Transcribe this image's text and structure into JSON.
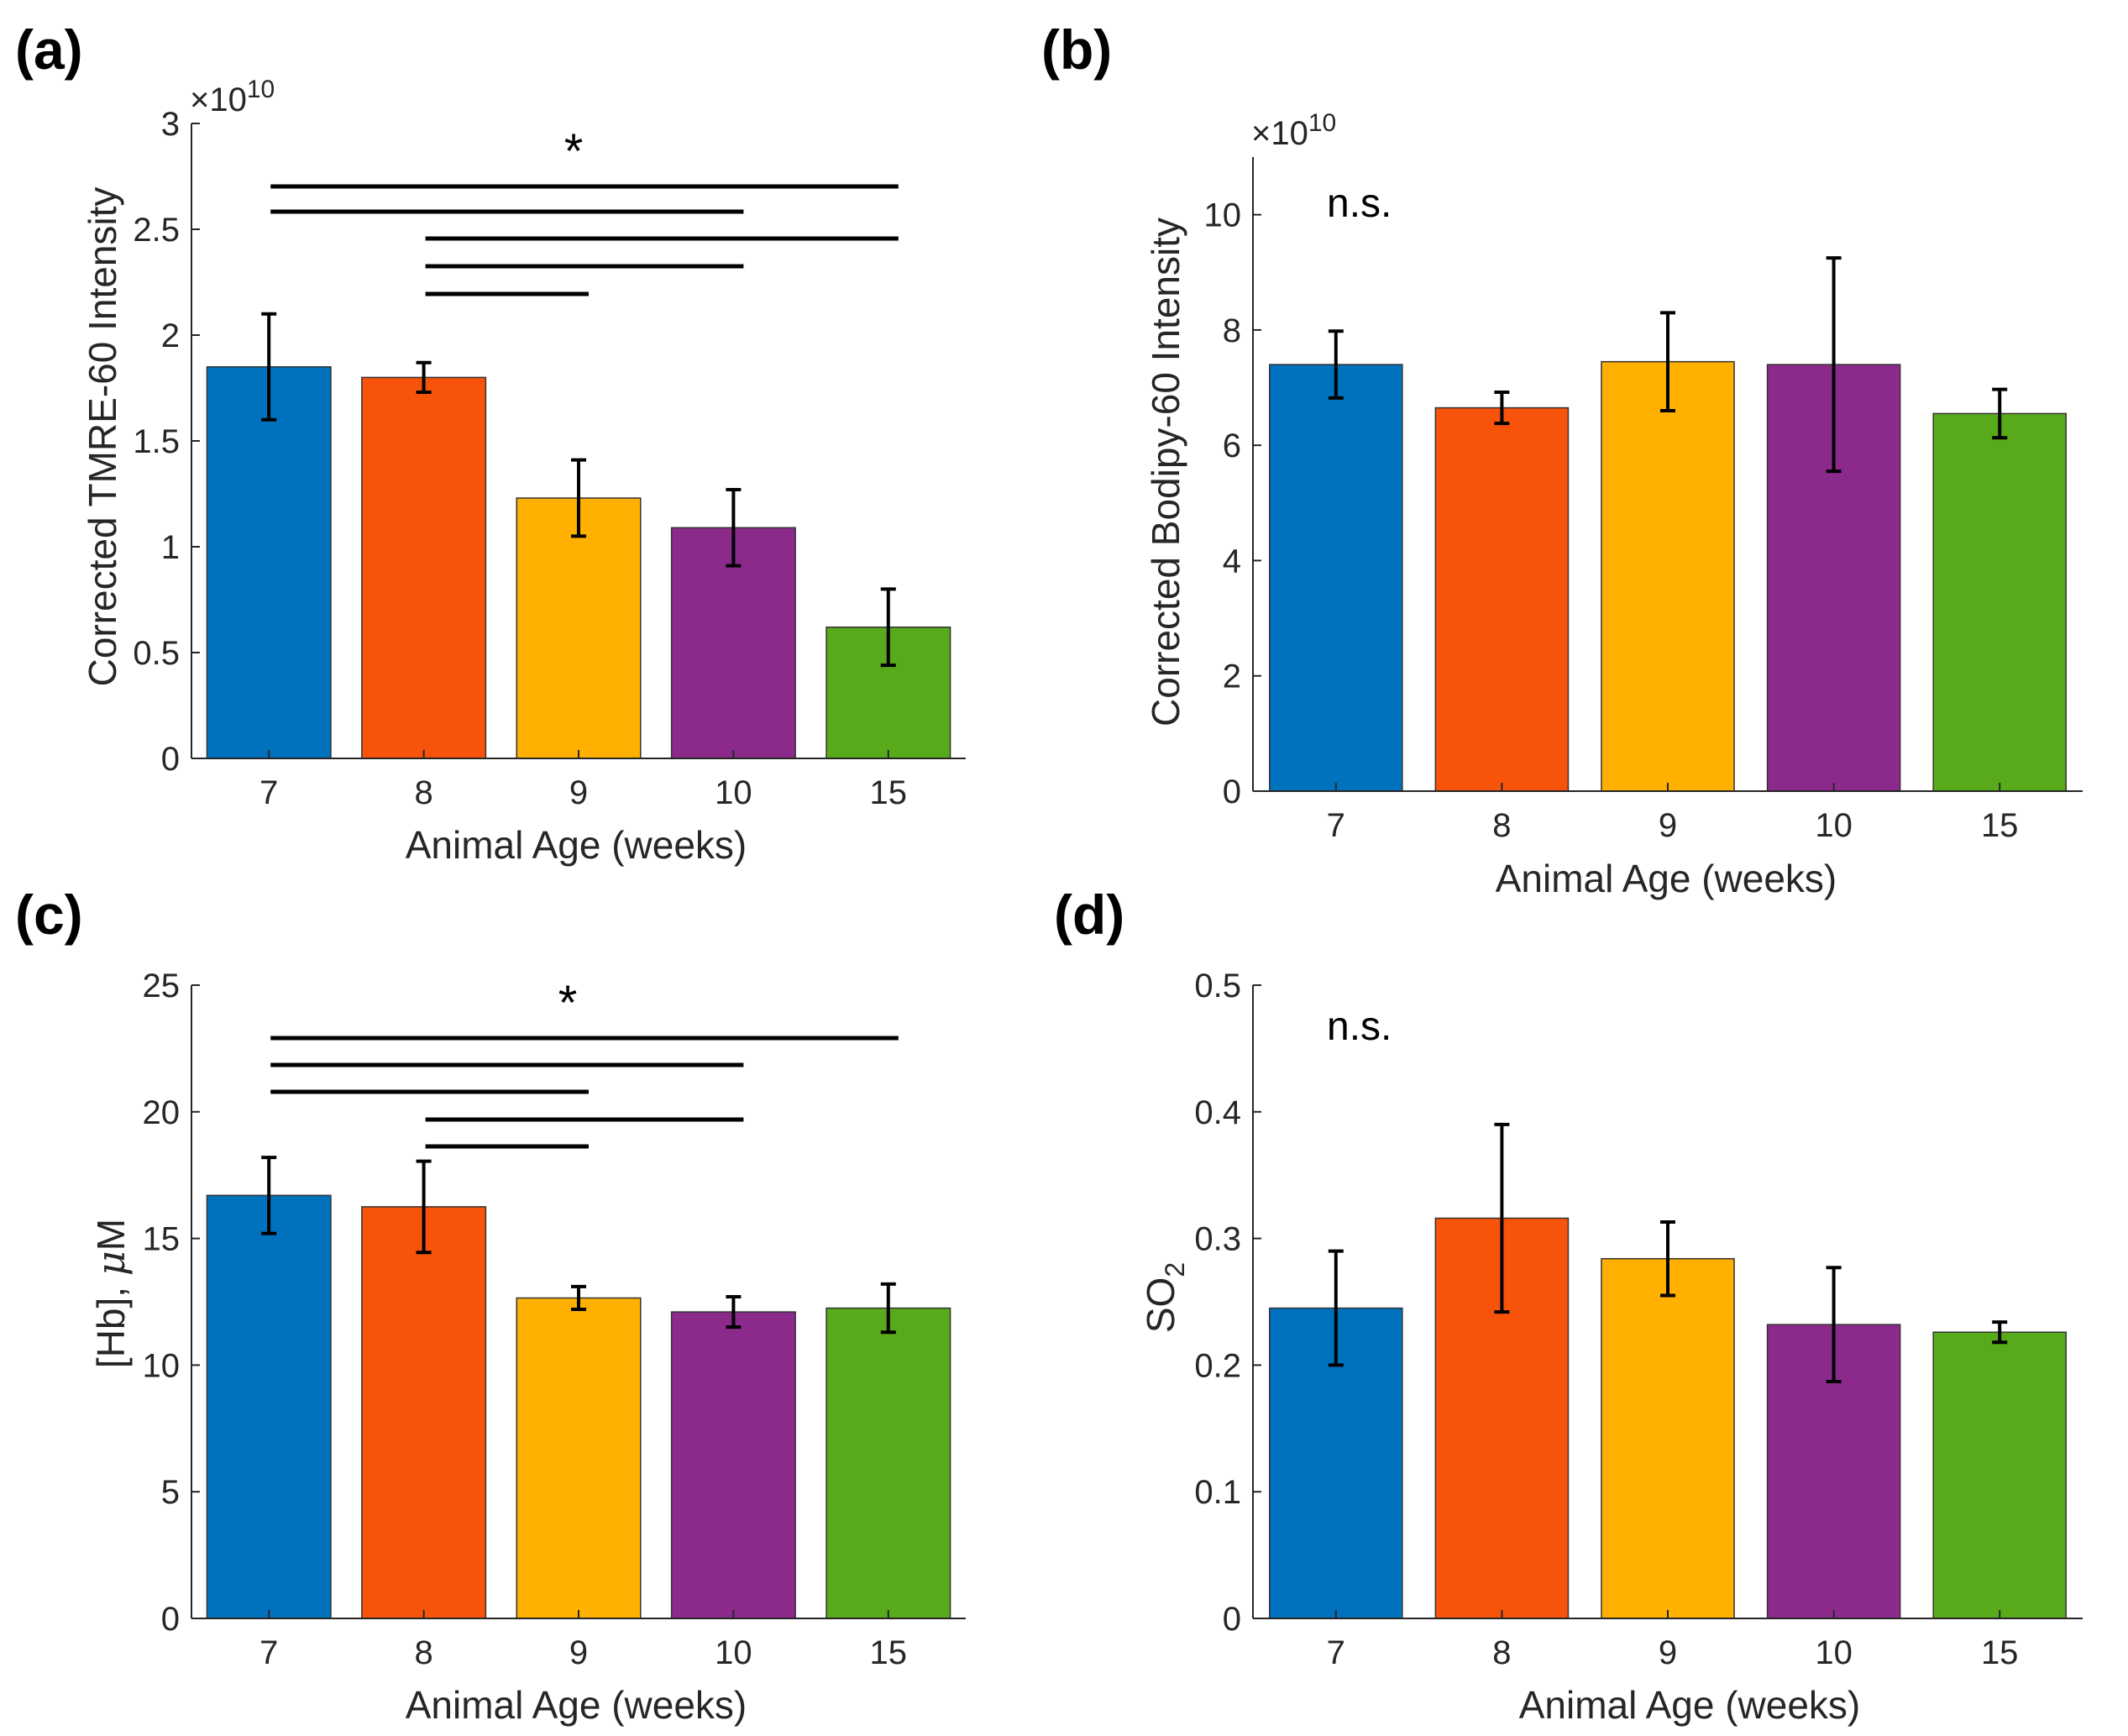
{
  "colors": {
    "bar_colors": [
      "#0072BD",
      "#F7530A",
      "#FFB000",
      "#8C2A8C",
      "#58AA1B"
    ],
    "axis": "#262626",
    "error_bar": "#000000"
  },
  "chart_data": [
    {
      "panel": "(a)",
      "type": "bar",
      "categories": [
        "7",
        "8",
        "9",
        "10",
        "15"
      ],
      "values": [
        1.85,
        1.8,
        1.23,
        1.09,
        0.62
      ],
      "errors": [
        0.25,
        0.07,
        0.18,
        0.18,
        0.18
      ],
      "xlabel": "Animal Age (weeks)",
      "ylabel": "Corrected TMRE-60 Intensity",
      "ylim": [
        0,
        3
      ],
      "yticks": [
        0,
        0.5,
        1,
        1.5,
        2,
        2.5,
        3
      ],
      "ytick_labels": [
        "0",
        "0.5",
        "1",
        "1.5",
        "2",
        "2.5",
        "3"
      ],
      "exponent_base": "×10",
      "exponent_power": "10",
      "significance": {
        "label": "*",
        "comparisons": [
          [
            "7",
            "15"
          ],
          [
            "7",
            "10"
          ],
          [
            "8",
            "15"
          ],
          [
            "8",
            "10"
          ],
          [
            "8",
            "9"
          ]
        ]
      }
    },
    {
      "panel": "(b)",
      "type": "bar",
      "categories": [
        "7",
        "8",
        "9",
        "10",
        "15"
      ],
      "values": [
        7.4,
        6.65,
        7.45,
        7.4,
        6.55
      ],
      "errors": [
        0.58,
        0.27,
        0.85,
        1.85,
        0.42
      ],
      "xlabel": "Animal Age (weeks)",
      "ylabel": "Corrected Bodipy-60 Intensity",
      "ylim": [
        0,
        11
      ],
      "yticks": [
        0,
        2,
        4,
        6,
        8,
        10
      ],
      "ytick_labels": [
        "0",
        "2",
        "4",
        "6",
        "8",
        "10"
      ],
      "exponent_base": "×10",
      "exponent_power": "10",
      "annotation": "n.s."
    },
    {
      "panel": "(c)",
      "type": "bar",
      "categories": [
        "7",
        "8",
        "9",
        "10",
        "15"
      ],
      "values": [
        16.7,
        16.25,
        12.65,
        12.1,
        12.25
      ],
      "errors": [
        1.5,
        1.8,
        0.45,
        0.6,
        0.95
      ],
      "xlabel": "Animal Age (weeks)",
      "ylabel_main": "[Hb], ",
      "ylabel_greek": "μ",
      "ylabel_unit": "M",
      "ylim": [
        0,
        25
      ],
      "yticks": [
        0,
        5,
        10,
        15,
        20,
        25
      ],
      "ytick_labels": [
        "0",
        "5",
        "10",
        "15",
        "20",
        "25"
      ],
      "significance": {
        "label": "*",
        "comparisons": [
          [
            "7",
            "15"
          ],
          [
            "7",
            "10"
          ],
          [
            "7",
            "9"
          ],
          [
            "8",
            "10"
          ],
          [
            "8",
            "9"
          ]
        ]
      }
    },
    {
      "panel": "(d)",
      "type": "bar",
      "categories": [
        "7",
        "8",
        "9",
        "10",
        "15"
      ],
      "values": [
        0.245,
        0.316,
        0.284,
        0.232,
        0.226
      ],
      "errors": [
        0.045,
        0.074,
        0.029,
        0.045,
        0.008
      ],
      "xlabel": "Animal Age (weeks)",
      "ylabel_main": "SO",
      "ylabel_sub": "2",
      "ylim": [
        0,
        0.5
      ],
      "yticks": [
        0,
        0.1,
        0.2,
        0.3,
        0.4,
        0.5
      ],
      "ytick_labels": [
        "0",
        "0.1",
        "0.2",
        "0.3",
        "0.4",
        "0.5"
      ],
      "annotation": "n.s."
    }
  ]
}
